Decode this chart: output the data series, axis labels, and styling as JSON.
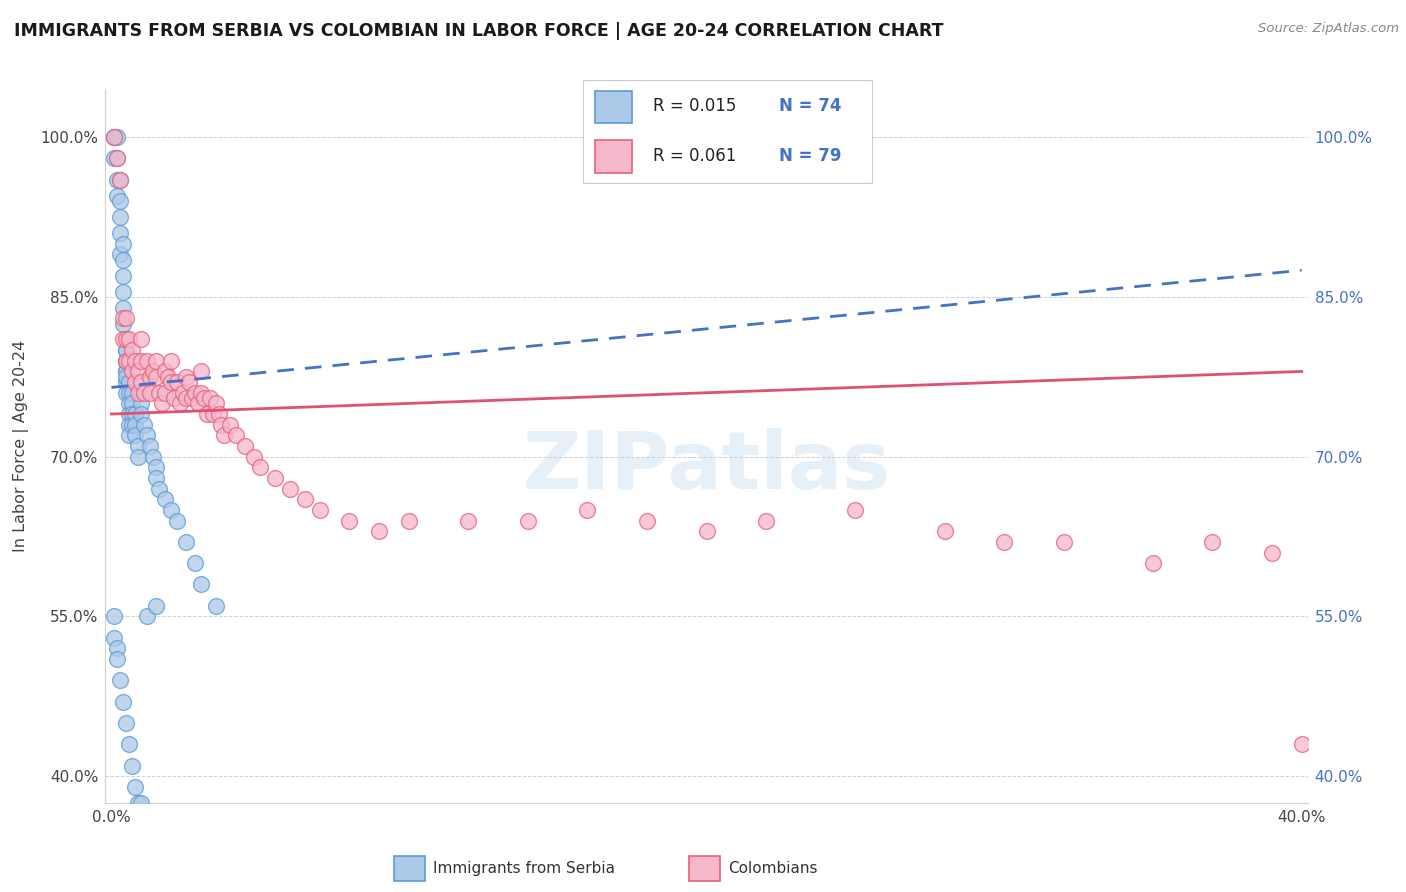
{
  "title": "IMMIGRANTS FROM SERBIA VS COLOMBIAN IN LABOR FORCE | AGE 20-24 CORRELATION CHART",
  "source": "Source: ZipAtlas.com",
  "ylabel": "In Labor Force | Age 20-24",
  "watermark": "ZIPatlas",
  "serbia_R": 0.015,
  "serbia_N": 74,
  "colombia_R": 0.061,
  "colombia_N": 79,
  "xlim": [
    -0.002,
    0.402
  ],
  "ylim": [
    0.375,
    1.045
  ],
  "x_ticks": [
    0.0,
    0.05,
    0.1,
    0.15,
    0.2,
    0.25,
    0.3,
    0.35,
    0.4
  ],
  "x_tick_labels": [
    "0.0%",
    "",
    "",
    "",
    "",
    "",
    "",
    "",
    "40.0%"
  ],
  "y_ticks": [
    0.4,
    0.55,
    0.7,
    0.85,
    1.0
  ],
  "y_tick_labels": [
    "40.0%",
    "55.0%",
    "70.0%",
    "85.0%",
    "100.0%"
  ],
  "serbia_color": "#adc9e8",
  "colombia_color": "#f5b8cb",
  "serbia_edge_color": "#5b9bd5",
  "colombia_edge_color": "#e8607a",
  "serbia_line_color": "#4472c4",
  "colombia_line_color": "#e05070",
  "grid_color": "#d0d0d0",
  "background_color": "#ffffff",
  "serbia_scatter_x": [
    0.001,
    0.001,
    0.001,
    0.002,
    0.002,
    0.002,
    0.002,
    0.003,
    0.003,
    0.003,
    0.003,
    0.003,
    0.004,
    0.004,
    0.004,
    0.004,
    0.004,
    0.004,
    0.005,
    0.005,
    0.005,
    0.005,
    0.005,
    0.005,
    0.005,
    0.005,
    0.005,
    0.005,
    0.006,
    0.006,
    0.006,
    0.006,
    0.006,
    0.006,
    0.007,
    0.007,
    0.007,
    0.007,
    0.008,
    0.008,
    0.008,
    0.009,
    0.009,
    0.01,
    0.01,
    0.01,
    0.011,
    0.012,
    0.013,
    0.014,
    0.015,
    0.015,
    0.016,
    0.018,
    0.02,
    0.022,
    0.025,
    0.028,
    0.03,
    0.035,
    0.001,
    0.001,
    0.002,
    0.002,
    0.003,
    0.004,
    0.005,
    0.006,
    0.007,
    0.008,
    0.009,
    0.01,
    0.012,
    0.015
  ],
  "serbia_scatter_y": [
    1.0,
    1.0,
    0.98,
    1.0,
    0.98,
    0.96,
    0.945,
    0.96,
    0.94,
    0.925,
    0.91,
    0.89,
    0.9,
    0.885,
    0.87,
    0.855,
    0.84,
    0.825,
    0.81,
    0.8,
    0.79,
    0.78,
    0.77,
    0.78,
    0.79,
    0.8,
    0.775,
    0.76,
    0.77,
    0.76,
    0.75,
    0.74,
    0.73,
    0.72,
    0.76,
    0.75,
    0.74,
    0.73,
    0.74,
    0.73,
    0.72,
    0.71,
    0.7,
    0.76,
    0.75,
    0.74,
    0.73,
    0.72,
    0.71,
    0.7,
    0.69,
    0.68,
    0.67,
    0.66,
    0.65,
    0.64,
    0.62,
    0.6,
    0.58,
    0.56,
    0.55,
    0.53,
    0.52,
    0.51,
    0.49,
    0.47,
    0.45,
    0.43,
    0.41,
    0.39,
    0.375,
    0.375,
    0.55,
    0.56
  ],
  "colombia_scatter_x": [
    0.001,
    0.002,
    0.003,
    0.004,
    0.004,
    0.005,
    0.005,
    0.005,
    0.006,
    0.006,
    0.007,
    0.007,
    0.008,
    0.008,
    0.009,
    0.009,
    0.01,
    0.01,
    0.01,
    0.011,
    0.012,
    0.013,
    0.013,
    0.014,
    0.015,
    0.015,
    0.016,
    0.017,
    0.018,
    0.018,
    0.019,
    0.02,
    0.02,
    0.021,
    0.022,
    0.023,
    0.024,
    0.025,
    0.025,
    0.026,
    0.027,
    0.028,
    0.029,
    0.03,
    0.03,
    0.031,
    0.032,
    0.033,
    0.034,
    0.035,
    0.036,
    0.037,
    0.038,
    0.04,
    0.042,
    0.045,
    0.048,
    0.05,
    0.055,
    0.06,
    0.065,
    0.07,
    0.08,
    0.09,
    0.1,
    0.12,
    0.14,
    0.16,
    0.18,
    0.2,
    0.22,
    0.25,
    0.28,
    0.3,
    0.32,
    0.35,
    0.37,
    0.39,
    0.4
  ],
  "colombia_scatter_y": [
    1.0,
    0.98,
    0.96,
    0.83,
    0.81,
    0.83,
    0.81,
    0.79,
    0.81,
    0.79,
    0.8,
    0.78,
    0.79,
    0.77,
    0.78,
    0.76,
    0.81,
    0.79,
    0.77,
    0.76,
    0.79,
    0.775,
    0.76,
    0.78,
    0.79,
    0.775,
    0.76,
    0.75,
    0.78,
    0.76,
    0.775,
    0.79,
    0.77,
    0.755,
    0.77,
    0.75,
    0.76,
    0.775,
    0.755,
    0.77,
    0.755,
    0.76,
    0.75,
    0.78,
    0.76,
    0.755,
    0.74,
    0.755,
    0.74,
    0.75,
    0.74,
    0.73,
    0.72,
    0.73,
    0.72,
    0.71,
    0.7,
    0.69,
    0.68,
    0.67,
    0.66,
    0.65,
    0.64,
    0.63,
    0.64,
    0.64,
    0.64,
    0.65,
    0.64,
    0.63,
    0.64,
    0.65,
    0.63,
    0.62,
    0.62,
    0.6,
    0.62,
    0.61,
    0.43
  ],
  "serbia_trendline_x": [
    0.0,
    0.4
  ],
  "serbia_trendline_y": [
    0.765,
    0.875
  ],
  "colombia_trendline_x": [
    0.0,
    0.4
  ],
  "colombia_trendline_y": [
    0.74,
    0.78
  ]
}
